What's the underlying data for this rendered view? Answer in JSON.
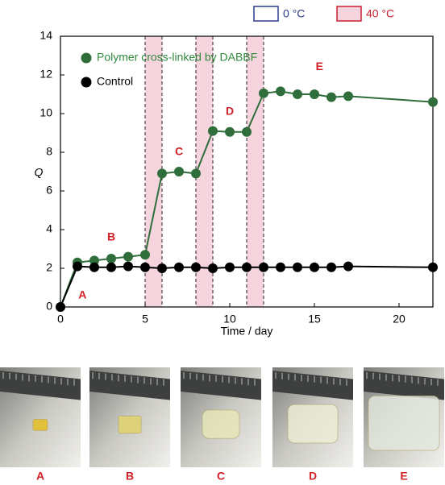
{
  "chart_data": {
    "type": "line",
    "x_label": "Time / day",
    "y_label": "Q",
    "xlim": [
      0,
      22
    ],
    "ylim": [
      0,
      14
    ],
    "xticks": [
      0,
      5,
      10,
      15,
      20
    ],
    "yticks": [
      0,
      2,
      4,
      6,
      8,
      10,
      12,
      14
    ],
    "x": [
      0,
      1,
      2,
      3,
      4,
      5,
      6,
      7,
      8,
      9,
      10,
      11,
      12,
      13,
      14,
      15,
      16,
      17,
      22
    ],
    "series": [
      {
        "name": "Polymer cross-linked by DABBF",
        "color": "#2f6e3b",
        "values": [
          0,
          2.3,
          2.4,
          2.5,
          2.6,
          2.7,
          6.9,
          7.0,
          6.9,
          9.1,
          9.05,
          9.05,
          11.05,
          11.15,
          11.0,
          11.0,
          10.85,
          10.9,
          10.6
        ]
      },
      {
        "name": "Control",
        "color": "#000000",
        "values": [
          0,
          2.1,
          2.05,
          2.05,
          2.1,
          2.05,
          2.0,
          2.05,
          2.05,
          2.0,
          2.05,
          2.05,
          2.05,
          2.05,
          2.05,
          2.05,
          2.05,
          2.1,
          2.05
        ]
      }
    ],
    "band_legend": [
      {
        "name": "0 °C",
        "color": "#ffffff",
        "border": "#2b3a8f"
      },
      {
        "name": "40 °C",
        "color": "#f5d4de",
        "border": "#c8202f"
      }
    ],
    "bands": [
      [
        5,
        6
      ],
      [
        8,
        9
      ],
      [
        11,
        12
      ]
    ],
    "annotations": [
      {
        "text": "A",
        "x": 1.3,
        "y": 0.6
      },
      {
        "text": "B",
        "x": 3,
        "y": 3.6
      },
      {
        "text": "C",
        "x": 7,
        "y": 8
      },
      {
        "text": "D",
        "x": 10,
        "y": 10.1
      },
      {
        "text": "E",
        "x": 15.3,
        "y": 12.4
      }
    ],
    "annotation_color": "#d32027"
  },
  "photos": [
    {
      "label": "A"
    },
    {
      "label": "B"
    },
    {
      "label": "C"
    },
    {
      "label": "D"
    },
    {
      "label": "E"
    }
  ]
}
